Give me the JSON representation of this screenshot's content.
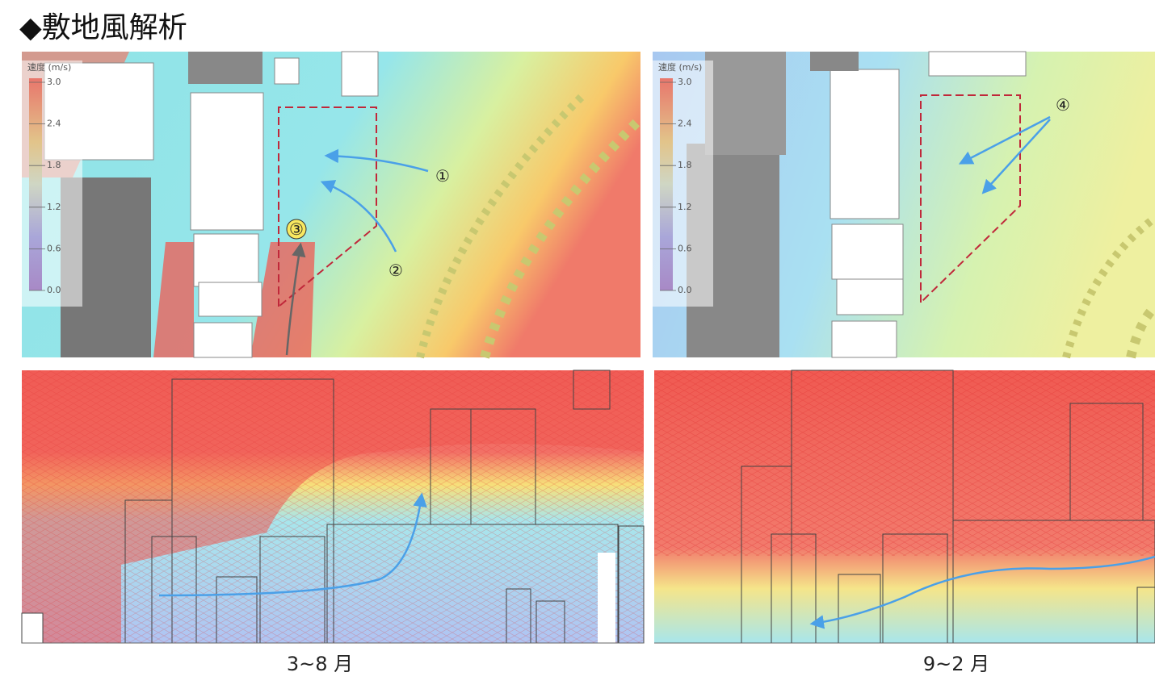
{
  "title": "◆敷地風解析",
  "panels": [
    {
      "legend": {
        "title": "速度 (m/s)",
        "ticks": [
          "3.0",
          "2.4",
          "1.8",
          "1.2",
          "0.6",
          "0.0"
        ]
      },
      "markers": [
        "①",
        "②",
        "③"
      ],
      "caption": "3~8 月"
    },
    {
      "legend": {
        "title": "速度 (m/s)",
        "ticks": [
          "3.0",
          "2.4",
          "1.8",
          "1.2",
          "0.6",
          "0.0"
        ]
      },
      "markers": [
        "④"
      ],
      "caption": "9~2 月"
    }
  ]
}
